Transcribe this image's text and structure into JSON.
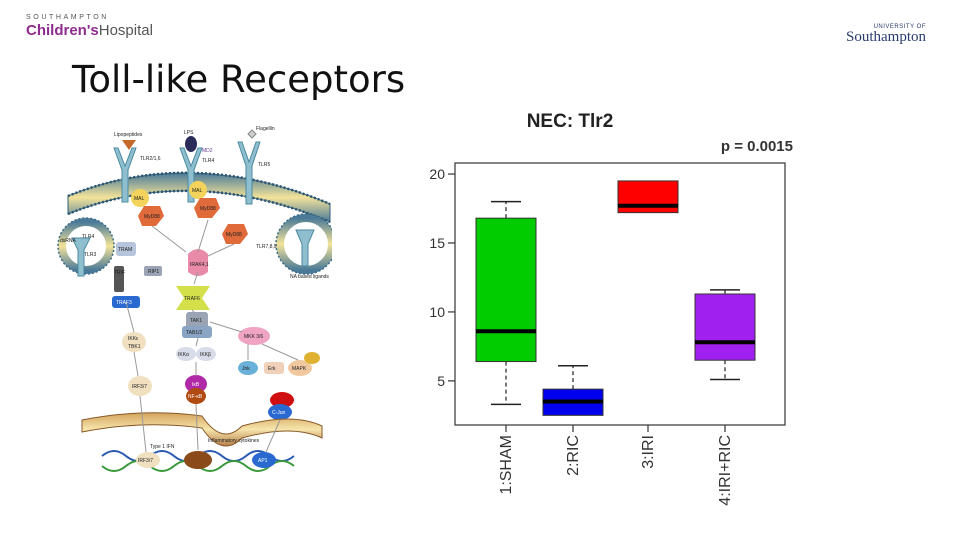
{
  "header": {
    "left_logo_small": "SOUTHAMPTON",
    "left_logo_brand": "Children's",
    "left_logo_suffix": "Hospital",
    "right_logo_small": "UNIVERSITY OF",
    "right_logo_brand": "Southampton"
  },
  "slide": {
    "title": "Toll-like Receptors"
  },
  "pathway": {
    "labels": {
      "lipopeptides": "Lipopeptides",
      "lps": "LPS",
      "flagellin": "Flagellin",
      "md2": "MD2",
      "tlr2": "TLR2/1,6",
      "tlr4": "TLR4",
      "tlr5": "TLR5",
      "mal": "MAL",
      "myd88": "MyD88",
      "dsrna": "dsRNA",
      "tlr4b": "TLR4",
      "tlr3": "TLR3",
      "tram": "TRAM",
      "trif": "TRIF",
      "rip1": "RIP1",
      "irak": "IRAK4,1",
      "traf6": "TRAF6",
      "traf3": "TRAF3",
      "tak1": "TAK1",
      "tab12": "TAB1/2",
      "ikke": "IKKε",
      "tbk1": "TBK1",
      "ikka": "IKKα",
      "ikkb": "IKKβ",
      "mkk": "MKK 3/6",
      "irf37": "IRF3/7",
      "nfkb": "NF-κB",
      "ikb": "IκB",
      "jnk": "Jnk",
      "erk": "Erk",
      "mapk": "MAPK",
      "cjun": "C-Jun",
      "myd88b": "MyD88",
      "tlr789": "TLR7,8,9",
      "na_ligands": "NA based ligands",
      "type1ifn": "Type 1 IFN",
      "inflammatory": "Inflammatory cytokines",
      "irf37b": "IRF3/7",
      "ap1": "AP1"
    }
  },
  "chart_data": {
    "type": "box",
    "title": "NEC: Tlr2",
    "annotation": "p = 0.0015",
    "categories": [
      "1:SHAM",
      "2:RIC",
      "3:IRI",
      "4:IRI+RIC"
    ],
    "ylim": [
      1.8,
      20.8
    ],
    "yticks": [
      5,
      10,
      15,
      20
    ],
    "boxes": [
      {
        "label": "1:SHAM",
        "whisker_low": 3.3,
        "q1": 6.4,
        "median": 8.6,
        "q3": 16.8,
        "whisker_high": 18.0,
        "color": "#00cc00"
      },
      {
        "label": "2:RIC",
        "whisker_low": 2.5,
        "q1": 2.5,
        "median": 3.5,
        "q3": 4.4,
        "whisker_high": 6.1,
        "color": "#0000ee"
      },
      {
        "label": "3:IRI",
        "whisker_low": 17.2,
        "q1": 17.2,
        "median": 17.7,
        "q3": 19.5,
        "whisker_high": 19.5,
        "color": "#ff0000"
      },
      {
        "label": "4:IRI+RIC",
        "whisker_low": 5.1,
        "q1": 6.5,
        "median": 7.8,
        "q3": 11.3,
        "whisker_high": 11.6,
        "color": "#a020f0"
      }
    ]
  }
}
